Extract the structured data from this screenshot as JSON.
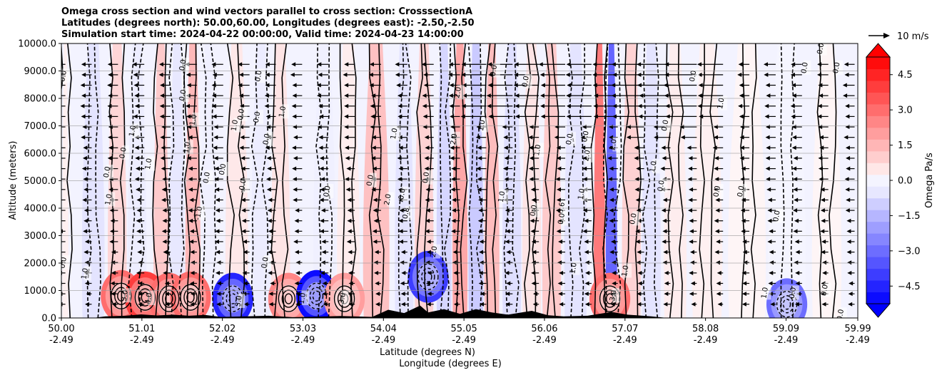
{
  "chart_data": {
    "type": "heatmap",
    "title_lines": [
      "Omega cross section and wind vectors parallel to cross section: CrosssectionA",
      "Latitudes (degrees north): 50.00,60.00, Longitudes (degrees east): -2.50,-2.50",
      "Simulation start time: 2024-04-22 00:00:00, Valid time: 2024-04-23 14:00:00"
    ],
    "ylabel": "Altitude (meters)",
    "xlabel_lines": [
      "Latitude (degrees N)",
      "Longitude (degrees E)"
    ],
    "ylim": [
      0,
      10000
    ],
    "y_ticks": [
      "0.0",
      "1000.0",
      "2000.0",
      "3000.0",
      "4000.0",
      "5000.0",
      "6000.0",
      "7000.0",
      "8000.0",
      "9000.0",
      "10000.0"
    ],
    "y_tick_values": [
      0,
      1000,
      2000,
      3000,
      4000,
      5000,
      6000,
      7000,
      8000,
      9000,
      10000
    ],
    "xlim": [
      50.0,
      59.99
    ],
    "x_ticks": [
      {
        "lat": "50.00",
        "lon": "-2.49",
        "value": 50.0
      },
      {
        "lat": "51.01",
        "lon": "-2.49",
        "value": 51.01
      },
      {
        "lat": "52.02",
        "lon": "-2.49",
        "value": 52.02
      },
      {
        "lat": "53.03",
        "lon": "-2.49",
        "value": 53.03
      },
      {
        "lat": "54.04",
        "lon": "-2.49",
        "value": 54.04
      },
      {
        "lat": "55.05",
        "lon": "-2.49",
        "value": 55.05
      },
      {
        "lat": "56.06",
        "lon": "-2.49",
        "value": 56.06
      },
      {
        "lat": "57.07",
        "lon": "-2.49",
        "value": 57.07
      },
      {
        "lat": "58.08",
        "lon": "-2.49",
        "value": 58.08
      },
      {
        "lat": "59.09",
        "lon": "-2.49",
        "value": 59.09
      },
      {
        "lat": "59.99",
        "lon": "-2.49",
        "value": 59.99
      }
    ],
    "grid": "horizontal",
    "colorbar": {
      "label": "Omega Pa/s",
      "range": [
        -5.25,
        5.25
      ],
      "ticks": [
        "4.5",
        "3.0",
        "1.5",
        "0.0",
        "−1.5",
        "−3.0",
        "−4.5"
      ],
      "tick_values": [
        4.5,
        3.0,
        1.5,
        0.0,
        -1.5,
        -3.0,
        -4.5
      ],
      "colormap": "bwr",
      "extend": "both"
    },
    "quiver_key": {
      "label": "10 m/s"
    },
    "bands": [
      {
        "lat": 50.05,
        "omega": 0.3
      },
      {
        "lat": 50.4,
        "omega": -0.6
      },
      {
        "lat": 50.7,
        "omega": 0.9
      },
      {
        "lat": 50.95,
        "omega": -0.4
      },
      {
        "lat": 51.25,
        "omega": 1.2
      },
      {
        "lat": 51.45,
        "omega": -0.5
      },
      {
        "lat": 51.65,
        "omega": 1.6
      },
      {
        "lat": 51.85,
        "omega": -0.3
      },
      {
        "lat": 52.2,
        "omega": 0.5
      },
      {
        "lat": 52.5,
        "omega": -0.4
      },
      {
        "lat": 52.75,
        "omega": 0.6
      },
      {
        "lat": 53.3,
        "omega": -0.3
      },
      {
        "lat": 53.6,
        "omega": 0.4
      },
      {
        "lat": 53.95,
        "omega": 1.4
      },
      {
        "lat": 54.3,
        "omega": -0.6
      },
      {
        "lat": 54.55,
        "omega": 1.0
      },
      {
        "lat": 54.8,
        "omega": -0.9
      },
      {
        "lat": 55.0,
        "omega": 2.0
      },
      {
        "lat": 55.2,
        "omega": -1.2
      },
      {
        "lat": 55.4,
        "omega": 1.5
      },
      {
        "lat": 55.65,
        "omega": -0.7
      },
      {
        "lat": 55.9,
        "omega": 0.6
      },
      {
        "lat": 56.15,
        "omega": 1.2
      },
      {
        "lat": 56.45,
        "omega": -0.6
      },
      {
        "lat": 56.75,
        "omega": 3.0
      },
      {
        "lat": 56.9,
        "omega": -3.5
      },
      {
        "lat": 57.15,
        "omega": 1.0
      },
      {
        "lat": 57.4,
        "omega": -0.6
      },
      {
        "lat": 57.7,
        "omega": 0.4
      },
      {
        "lat": 58.1,
        "omega": 0.3
      },
      {
        "lat": 58.6,
        "omega": 0.2
      },
      {
        "lat": 59.1,
        "omega": -0.2
      },
      {
        "lat": 59.6,
        "omega": 0.2
      }
    ],
    "low_level_cells": [
      {
        "lat": 50.75,
        "alt": 800,
        "omega": 3.0
      },
      {
        "lat": 51.05,
        "alt": 750,
        "omega": 4.0
      },
      {
        "lat": 51.35,
        "alt": 700,
        "omega": 3.0
      },
      {
        "lat": 51.62,
        "alt": 750,
        "omega": 3.0
      },
      {
        "lat": 52.15,
        "alt": 700,
        "omega": -4.5
      },
      {
        "lat": 52.85,
        "alt": 700,
        "omega": 2.5
      },
      {
        "lat": 53.2,
        "alt": 800,
        "omega": -5.0
      },
      {
        "lat": 53.55,
        "alt": 700,
        "omega": 2.0
      },
      {
        "lat": 54.6,
        "alt": 1500,
        "omega": -4.0
      },
      {
        "lat": 56.88,
        "alt": 700,
        "omega": 3.0
      },
      {
        "lat": 59.1,
        "alt": 500,
        "omega": -3.0
      }
    ],
    "contour_labels": [
      {
        "text": "0.0",
        "lat": 50.05,
        "alt": 8800
      },
      {
        "text": "0.0",
        "lat": 50.05,
        "alt": 2000
      },
      {
        "text": "1.0",
        "lat": 50.32,
        "alt": 1600
      },
      {
        "text": "0.0",
        "lat": 50.6,
        "alt": 5300
      },
      {
        "text": "1.0",
        "lat": 50.62,
        "alt": 4300
      },
      {
        "text": "0.0",
        "lat": 50.8,
        "alt": 6000
      },
      {
        "text": "1.0",
        "lat": 50.92,
        "alt": 6800
      },
      {
        "text": "3.0",
        "lat": 50.82,
        "alt": 800
      },
      {
        "text": "4.0",
        "lat": 51.12,
        "alt": 700
      },
      {
        "text": "1.0",
        "lat": 51.12,
        "alt": 5600
      },
      {
        "text": "0.0",
        "lat": 51.55,
        "alt": 9200
      },
      {
        "text": "0.0",
        "lat": 51.55,
        "alt": 8100
      },
      {
        "text": "1.0",
        "lat": 51.6,
        "alt": 6200
      },
      {
        "text": "1.0",
        "lat": 51.68,
        "alt": 7200
      },
      {
        "text": "0.0",
        "lat": 51.85,
        "alt": 5100
      },
      {
        "text": "-1.0",
        "lat": 51.75,
        "alt": 3800
      },
      {
        "text": "3.0",
        "lat": 52.25,
        "alt": 600
      },
      {
        "text": "0.0",
        "lat": 52.05,
        "alt": 5400
      },
      {
        "text": "1.0",
        "lat": 52.2,
        "alt": 7000
      },
      {
        "text": "0.0",
        "lat": 52.28,
        "alt": 7400
      },
      {
        "text": "-0.0",
        "lat": 52.3,
        "alt": 4800
      },
      {
        "text": "0.0",
        "lat": 52.48,
        "alt": 7300
      },
      {
        "text": "0.0",
        "lat": 52.5,
        "alt": 8800
      },
      {
        "text": "0.0",
        "lat": 52.6,
        "alt": 6500
      },
      {
        "text": "0.0",
        "lat": 52.58,
        "alt": 2000
      },
      {
        "text": "1.0",
        "lat": 52.8,
        "alt": 7500
      },
      {
        "text": "1.0",
        "lat": 53.05,
        "alt": 700
      },
      {
        "text": "3.0",
        "lat": 53.55,
        "alt": 700
      },
      {
        "text": "0.0",
        "lat": 53.36,
        "alt": 4600
      },
      {
        "text": "0.0",
        "lat": 53.9,
        "alt": 5000
      },
      {
        "text": "2.0",
        "lat": 54.12,
        "alt": 4300
      },
      {
        "text": "1.0",
        "lat": 54.2,
        "alt": 6700
      },
      {
        "text": "0.0",
        "lat": 54.3,
        "alt": 4500
      },
      {
        "text": "0.8",
        "lat": 54.35,
        "alt": 3800
      },
      {
        "text": "2.0",
        "lat": 54.7,
        "alt": 2400
      },
      {
        "text": "0.0",
        "lat": 54.6,
        "alt": 5100
      },
      {
        "text": "2.0",
        "lat": 54.95,
        "alt": 6500
      },
      {
        "text": "2.0",
        "lat": 55.0,
        "alt": 8200
      },
      {
        "text": "1.0",
        "lat": 55.3,
        "alt": 7000
      },
      {
        "text": "0.0",
        "lat": 55.45,
        "alt": 9000
      },
      {
        "text": "1.0",
        "lat": 55.55,
        "alt": 4400
      },
      {
        "text": "0.0",
        "lat": 55.85,
        "alt": 8600
      },
      {
        "text": "1.0",
        "lat": 56.0,
        "alt": 6100
      },
      {
        "text": "0.0",
        "lat": 55.95,
        "alt": 3900
      },
      {
        "text": "0.6",
        "lat": 56.3,
        "alt": 4000
      },
      {
        "text": "0.0",
        "lat": 56.3,
        "alt": 3600
      },
      {
        "text": "0.0",
        "lat": 56.4,
        "alt": 6500
      },
      {
        "text": "1.0",
        "lat": 56.55,
        "alt": 4500
      },
      {
        "text": "2.0",
        "lat": 56.62,
        "alt": 5900
      },
      {
        "text": "0.0",
        "lat": 56.6,
        "alt": 6600
      },
      {
        "text": "1.0",
        "lat": 56.45,
        "alt": 1800
      },
      {
        "text": "2.0",
        "lat": 56.95,
        "alt": 6300
      },
      {
        "text": "3.0",
        "lat": 56.95,
        "alt": 800
      },
      {
        "text": "1.0",
        "lat": 57.1,
        "alt": 1700
      },
      {
        "text": "0.0",
        "lat": 57.2,
        "alt": 3600
      },
      {
        "text": "0.0",
        "lat": 57.6,
        "alt": 7000
      },
      {
        "text": "1.0",
        "lat": 57.45,
        "alt": 5500
      },
      {
        "text": "0.0",
        "lat": 57.55,
        "alt": 4800
      },
      {
        "text": "0.0",
        "lat": 57.95,
        "alt": 8800
      },
      {
        "text": "0.0",
        "lat": 58.25,
        "alt": 4600
      },
      {
        "text": "0.0",
        "lat": 58.55,
        "alt": 4600
      },
      {
        "text": "1.0",
        "lat": 58.3,
        "alt": 7800
      },
      {
        "text": "0.0",
        "lat": 59.0,
        "alt": 3700
      },
      {
        "text": "1.0",
        "lat": 58.85,
        "alt": 900
      },
      {
        "text": "0.0",
        "lat": 59.35,
        "alt": 9100
      },
      {
        "text": "0.0",
        "lat": 59.55,
        "alt": 9800
      },
      {
        "text": "0.0",
        "lat": 59.75,
        "alt": 9100
      },
      {
        "text": "0.0",
        "lat": 59.2,
        "alt": 900
      },
      {
        "text": "0.0",
        "lat": 59.6,
        "alt": 1000
      },
      {
        "text": "0.0",
        "lat": 59.8,
        "alt": 100
      }
    ]
  }
}
